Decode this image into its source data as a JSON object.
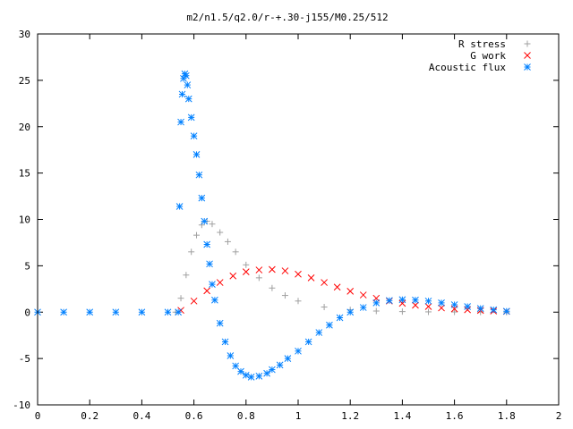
{
  "chart_data": {
    "type": "scatter",
    "title": "m2/n1.5/q2.0/r-+.30-j155/M0.25/512",
    "xlabel": "",
    "ylabel": "",
    "xlim": [
      0,
      2
    ],
    "ylim": [
      -10,
      30
    ],
    "x_ticks": [
      0,
      0.2,
      0.4,
      0.6,
      0.8,
      1,
      1.2,
      1.4,
      1.6,
      1.8,
      2
    ],
    "x_tick_labels": [
      "0",
      "0.2",
      "0.4",
      "0.6",
      "0.8",
      "1",
      "1.2",
      "1.4",
      "1.6",
      "1.8",
      "2"
    ],
    "y_ticks": [
      -10,
      -5,
      0,
      5,
      10,
      15,
      20,
      25,
      30
    ],
    "y_tick_labels": [
      "-10",
      "-5",
      "0",
      "5",
      "10",
      "15",
      "20",
      "25",
      "30"
    ],
    "grid": false,
    "legend_position": "top-right",
    "series": [
      {
        "name": "R stress",
        "marker": "+",
        "color": "#a0a0a0",
        "x": [
          0.53,
          0.55,
          0.57,
          0.59,
          0.61,
          0.63,
          0.65,
          0.67,
          0.7,
          0.73,
          0.76,
          0.8,
          0.85,
          0.9,
          0.95,
          1.0,
          1.1,
          1.2,
          1.3,
          1.4,
          1.5,
          1.6,
          1.7,
          1.8
        ],
        "y": [
          0,
          1.5,
          4.0,
          6.5,
          8.3,
          9.4,
          9.8,
          9.5,
          8.6,
          7.6,
          6.5,
          5.1,
          3.7,
          2.6,
          1.8,
          1.2,
          0.55,
          0.25,
          0.12,
          0.06,
          0.03,
          0.02,
          0.01,
          0
        ]
      },
      {
        "name": "G work",
        "marker": "x",
        "color": "#ff0000",
        "x": [
          0.55,
          0.6,
          0.65,
          0.7,
          0.75,
          0.8,
          0.85,
          0.9,
          0.95,
          1.0,
          1.05,
          1.1,
          1.15,
          1.2,
          1.25,
          1.3,
          1.35,
          1.4,
          1.45,
          1.5,
          1.55,
          1.6,
          1.65,
          1.7,
          1.75,
          1.8
        ],
        "y": [
          0.2,
          1.2,
          2.3,
          3.2,
          3.9,
          4.35,
          4.55,
          4.6,
          4.45,
          4.1,
          3.7,
          3.2,
          2.7,
          2.25,
          1.85,
          1.5,
          1.2,
          0.95,
          0.75,
          0.6,
          0.45,
          0.35,
          0.25,
          0.18,
          0.12,
          0.08
        ]
      },
      {
        "name": "Acoustic flux",
        "marker": "*",
        "color": "#0080ff",
        "x": [
          0,
          0.1,
          0.2,
          0.3,
          0.4,
          0.5,
          0.54,
          0.545,
          0.55,
          0.555,
          0.56,
          0.565,
          0.57,
          0.575,
          0.58,
          0.59,
          0.6,
          0.61,
          0.62,
          0.63,
          0.64,
          0.65,
          0.66,
          0.67,
          0.68,
          0.7,
          0.72,
          0.74,
          0.76,
          0.78,
          0.8,
          0.82,
          0.85,
          0.88,
          0.9,
          0.93,
          0.96,
          1.0,
          1.04,
          1.08,
          1.12,
          1.16,
          1.2,
          1.25,
          1.3,
          1.35,
          1.4,
          1.45,
          1.5,
          1.55,
          1.6,
          1.65,
          1.7,
          1.75,
          1.8
        ],
        "y": [
          0,
          0,
          0,
          0,
          0,
          0,
          0,
          11.4,
          20.5,
          23.5,
          25.2,
          25.7,
          25.5,
          24.5,
          23.0,
          21.0,
          19.0,
          17.0,
          14.8,
          12.3,
          9.8,
          7.3,
          5.2,
          3.0,
          1.3,
          -1.2,
          -3.2,
          -4.7,
          -5.8,
          -6.4,
          -6.8,
          -7.0,
          -6.9,
          -6.6,
          -6.2,
          -5.7,
          -5.0,
          -4.2,
          -3.2,
          -2.2,
          -1.4,
          -0.6,
          0.0,
          0.5,
          1.0,
          1.25,
          1.35,
          1.3,
          1.2,
          1.0,
          0.8,
          0.6,
          0.4,
          0.25,
          0.1
        ]
      }
    ]
  }
}
